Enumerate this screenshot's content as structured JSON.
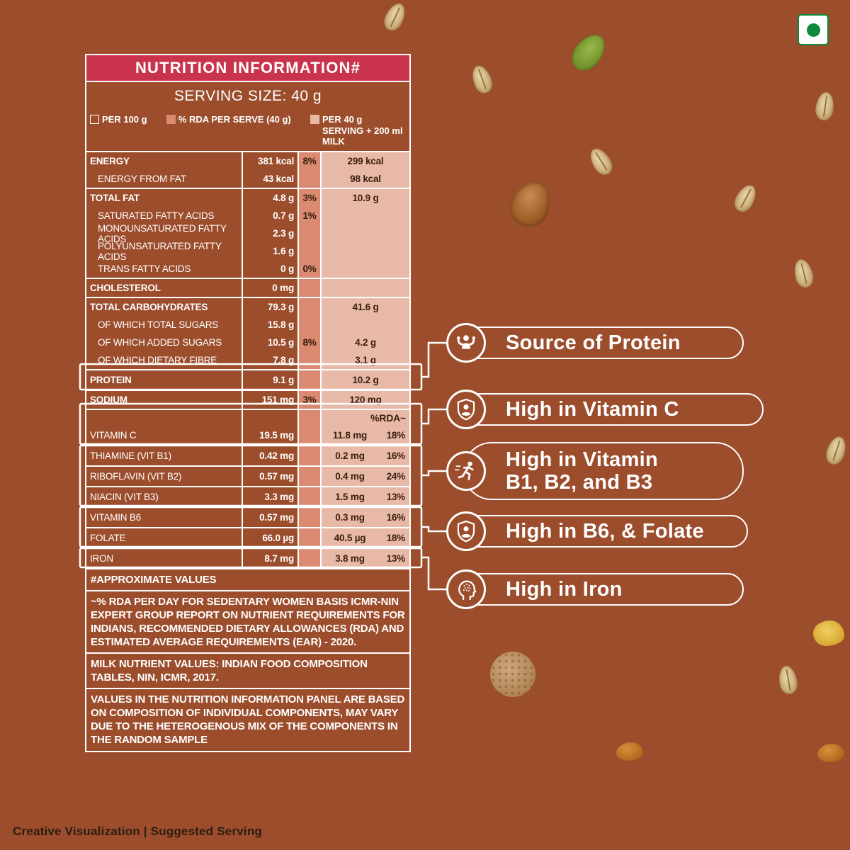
{
  "colors": {
    "background": "#9c4d2c",
    "header_red": "#c9344c",
    "rda_column_salmon": "#d98a70",
    "milk_column_pink": "#e9b9a8",
    "veg_mark_green": "#0e8a3a",
    "shaded_text_dark": "#3a1d0e"
  },
  "panel": {
    "title": "NUTRITION INFORMATION#",
    "serving_size": "SERVING SIZE: 40 g",
    "legend": [
      {
        "swatch": "per-100g",
        "label": "PER 100 g"
      },
      {
        "swatch": "rda-per-serve",
        "label": "% RDA PER SERVE (40 g)"
      },
      {
        "swatch": "per-40g-serving-milk",
        "label": "PER 40 g SERVING + 200 ml MILK"
      }
    ],
    "rda_header": "%RDA~",
    "rows": [
      {
        "label": "ENERGY",
        "per100": "381 kcal",
        "rda": "8%",
        "milk": "299 kcal",
        "bold": true
      },
      {
        "label": "ENERGY FROM FAT",
        "per100": "43 kcal",
        "milk": "98 kcal",
        "indent": true,
        "end": true
      },
      {
        "label": "TOTAL FAT",
        "per100": "4.8 g",
        "rda": "3%",
        "milk": "10.9 g",
        "bold": true
      },
      {
        "label": "SATURATED FATTY ACIDS",
        "per100": "0.7 g",
        "rda": "1%",
        "indent": true
      },
      {
        "label": "MONOUNSATURATED FATTY ACIDS",
        "per100": "2.3 g",
        "indent": true
      },
      {
        "label": "POLYUNSATURATED FATTY ACIDS",
        "per100": "1.6 g",
        "indent": true
      },
      {
        "label": "TRANS FATTY ACIDS",
        "per100": "0 g",
        "rda": "0%",
        "indent": true,
        "end": true
      },
      {
        "label": "CHOLESTEROL",
        "per100": "0 mg",
        "bold": true,
        "end": true
      },
      {
        "label": "TOTAL CARBOHYDRATES",
        "per100": "79.3 g",
        "milk": "41.6 g",
        "bold": true
      },
      {
        "label": "OF WHICH TOTAL SUGARS",
        "per100": "15.8 g",
        "indent": true
      },
      {
        "label": "OF WHICH ADDED SUGARS",
        "per100": "10.5 g",
        "rda": "8%",
        "milk": "4.2 g",
        "indent": true
      },
      {
        "label": "OF WHICH DIETARY FIBRE",
        "per100": "7.8 g",
        "milk": "3.1 g",
        "indent": true,
        "end": true
      },
      {
        "label": "PROTEIN",
        "per100": "9.1 g",
        "milk": "10.2 g",
        "bold": true,
        "tall": true,
        "end": true
      },
      {
        "label": "SODIUM",
        "per100": "151 mg",
        "rda": "3%",
        "milk": "120 mg",
        "bold": true,
        "end": true
      },
      {
        "label": "",
        "pct": "%RDA~",
        "header": true
      },
      {
        "label": "VITAMIN C",
        "per100": "19.5 mg",
        "milk": "11.8 mg",
        "pct": "18%",
        "tall": true,
        "end": true
      },
      {
        "label": "THIAMINE (VIT B1)",
        "per100": "0.42 mg",
        "milk": "0.2 mg",
        "pct": "16%",
        "tall": true,
        "end": true
      },
      {
        "label": "RIBOFLAVIN (VIT B2)",
        "per100": "0.57 mg",
        "milk": "0.4 mg",
        "pct": "24%",
        "tall": true,
        "end": true
      },
      {
        "label": "NIACIN (VIT B3)",
        "per100": "3.3 mg",
        "milk": "1.5 mg",
        "pct": "13%",
        "tall": true,
        "end": true
      },
      {
        "label": "VITAMIN B6",
        "per100": "0.57 mg",
        "milk": "0.3 mg",
        "pct": "16%",
        "tall": true,
        "end": true
      },
      {
        "label": "FOLATE",
        "per100": "66.0 µg",
        "milk": "40.5 µg",
        "pct": "18%",
        "tall": true,
        "end": true
      },
      {
        "label": "IRON",
        "per100": "8.7 mg",
        "milk": "3.8 mg",
        "pct": "13%",
        "tall": true,
        "end": true
      }
    ],
    "footnotes": [
      "#APPROXIMATE VALUES",
      "~% RDA PER DAY FOR SEDENTARY WOMEN BASIS ICMR-NIN EXPERT GROUP REPORT ON NUTRIENT REQUIREMENTS FOR INDIANS, RECOMMENDED DIETARY ALLOWANCES (RDA) AND ESTIMATED AVERAGE REQUIREMENTS (EAR) - 2020.",
      "MILK NUTRIENT VALUES: INDIAN FOOD COMPOSITION TABLES, NIN, ICMR, 2017.",
      "VALUES IN THE NUTRITION INFORMATION PANEL ARE BASED ON COMPOSITION OF INDIVIDUAL COMPONENTS, MAY VARY DUE TO THE HETEROGENOUS MIX OF THE COMPONENTS IN THE RANDOM SAMPLE"
    ]
  },
  "callouts": [
    {
      "icon": "flexing-arms-icon",
      "lines": [
        "Source of Protein"
      ]
    },
    {
      "icon": "shield-user-icon",
      "lines": [
        "High in Vitamin C"
      ]
    },
    {
      "icon": "running-person-icon",
      "lines": [
        "High in Vitamin",
        "B1, B2, and B3"
      ]
    },
    {
      "icon": "shield-user-icon",
      "lines": [
        "High in B6, & Folate"
      ]
    },
    {
      "icon": "head-brain-icon",
      "lines": [
        "High in Iron"
      ]
    }
  ],
  "veg_mark": {
    "type": "vegetarian"
  },
  "footer": "Creative Visualization  |  Suggested Serving",
  "decorations": [
    "oat-grain",
    "pumpkin-seed",
    "almond",
    "corn-flake",
    "multigrain-cookie",
    "raisin"
  ]
}
